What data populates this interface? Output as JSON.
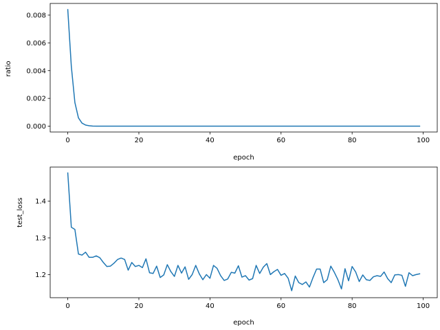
{
  "chart_data": [
    {
      "type": "line",
      "xlabel": "epoch",
      "ylabel": "ratio",
      "xlim": [
        -4.95,
        103.95
      ],
      "ylim": [
        -0.00042,
        0.00884
      ],
      "xticks": [
        0,
        20,
        40,
        60,
        80,
        100
      ],
      "xtick_labels": [
        "0",
        "20",
        "40",
        "60",
        "80",
        "100"
      ],
      "yticks": [
        0.0,
        0.002,
        0.004,
        0.006,
        0.008
      ],
      "ytick_labels": [
        "0.000",
        "0.002",
        "0.004",
        "0.006",
        "0.008"
      ],
      "grid": false,
      "series": [
        {
          "color": "#1f77b4",
          "x": [
            0,
            1,
            2,
            3,
            4,
            5,
            6,
            7,
            8,
            9,
            10,
            11,
            12,
            13,
            14,
            15,
            16,
            17,
            18,
            19,
            20,
            21,
            22,
            23,
            24,
            25,
            26,
            27,
            28,
            29,
            30,
            31,
            32,
            33,
            34,
            35,
            36,
            37,
            38,
            39,
            40,
            41,
            42,
            43,
            44,
            45,
            46,
            47,
            48,
            49,
            50,
            51,
            52,
            53,
            54,
            55,
            56,
            57,
            58,
            59,
            60,
            61,
            62,
            63,
            64,
            65,
            66,
            67,
            68,
            69,
            70,
            71,
            72,
            73,
            74,
            75,
            76,
            77,
            78,
            79,
            80,
            81,
            82,
            83,
            84,
            85,
            86,
            87,
            88,
            89,
            90,
            91,
            92,
            93,
            94,
            95,
            96,
            97,
            98,
            99
          ],
          "y": [
            0.0084,
            0.0043,
            0.0017,
            0.0006,
            0.00022,
            8e-05,
            3e-05,
            1e-05,
            4e-06,
            2e-06,
            1e-06,
            0,
            0,
            0,
            0,
            0,
            0,
            0,
            0,
            0,
            0,
            0,
            0,
            0,
            0,
            0,
            0,
            0,
            0,
            0,
            0,
            0,
            0,
            0,
            0,
            0,
            0,
            0,
            0,
            0,
            0,
            0,
            0,
            0,
            0,
            0,
            0,
            0,
            0,
            0,
            0,
            0,
            0,
            0,
            0,
            0,
            0,
            0,
            0,
            0,
            0,
            0,
            0,
            0,
            0,
            0,
            0,
            0,
            0,
            0,
            0,
            0,
            0,
            0,
            0,
            0,
            0,
            0,
            0,
            0,
            0,
            0,
            0,
            0,
            0,
            0,
            0,
            0,
            0,
            0,
            0,
            0,
            0,
            0,
            0,
            0,
            0,
            0,
            0,
            0
          ]
        }
      ]
    },
    {
      "type": "line",
      "xlabel": "epoch",
      "ylabel": "test_loss",
      "xlim": [
        -4.95,
        103.95
      ],
      "ylim": [
        1.137,
        1.493
      ],
      "xticks": [
        0,
        20,
        40,
        60,
        80,
        100
      ],
      "xtick_labels": [
        "0",
        "20",
        "40",
        "60",
        "80",
        "100"
      ],
      "yticks": [
        1.2,
        1.3,
        1.4
      ],
      "ytick_labels": [
        "1.2",
        "1.3",
        "1.4"
      ],
      "grid": false,
      "series": [
        {
          "color": "#1f77b4",
          "x": [
            0,
            1,
            2,
            3,
            4,
            5,
            6,
            7,
            8,
            9,
            10,
            11,
            12,
            13,
            14,
            15,
            16,
            17,
            18,
            19,
            20,
            21,
            22,
            23,
            24,
            25,
            26,
            27,
            28,
            29,
            30,
            31,
            32,
            33,
            34,
            35,
            36,
            37,
            38,
            39,
            40,
            41,
            42,
            43,
            44,
            45,
            46,
            47,
            48,
            49,
            50,
            51,
            52,
            53,
            54,
            55,
            56,
            57,
            58,
            59,
            60,
            61,
            62,
            63,
            64,
            65,
            66,
            67,
            68,
            69,
            70,
            71,
            72,
            73,
            74,
            75,
            76,
            77,
            78,
            79,
            80,
            81,
            82,
            83,
            84,
            85,
            86,
            87,
            88,
            89,
            90,
            91,
            92,
            93,
            94,
            95,
            96,
            97,
            98,
            99
          ],
          "y": [
            1.477,
            1.329,
            1.323,
            1.256,
            1.253,
            1.261,
            1.247,
            1.247,
            1.251,
            1.246,
            1.233,
            1.222,
            1.223,
            1.231,
            1.241,
            1.245,
            1.241,
            1.212,
            1.233,
            1.222,
            1.225,
            1.219,
            1.243,
            1.205,
            1.203,
            1.223,
            1.192,
            1.199,
            1.227,
            1.208,
            1.195,
            1.225,
            1.204,
            1.221,
            1.187,
            1.2,
            1.225,
            1.202,
            1.186,
            1.2,
            1.19,
            1.225,
            1.217,
            1.197,
            1.184,
            1.188,
            1.206,
            1.204,
            1.224,
            1.193,
            1.197,
            1.185,
            1.189,
            1.225,
            1.203,
            1.22,
            1.23,
            1.2,
            1.208,
            1.214,
            1.198,
            1.203,
            1.19,
            1.156,
            1.196,
            1.178,
            1.173,
            1.18,
            1.166,
            1.192,
            1.215,
            1.215,
            1.178,
            1.186,
            1.223,
            1.206,
            1.186,
            1.161,
            1.216,
            1.183,
            1.222,
            1.207,
            1.181,
            1.199,
            1.186,
            1.184,
            1.194,
            1.197,
            1.195,
            1.207,
            1.189,
            1.178,
            1.199,
            1.2,
            1.198,
            1.168,
            1.205,
            1.197,
            1.2,
            1.202
          ]
        }
      ]
    }
  ]
}
